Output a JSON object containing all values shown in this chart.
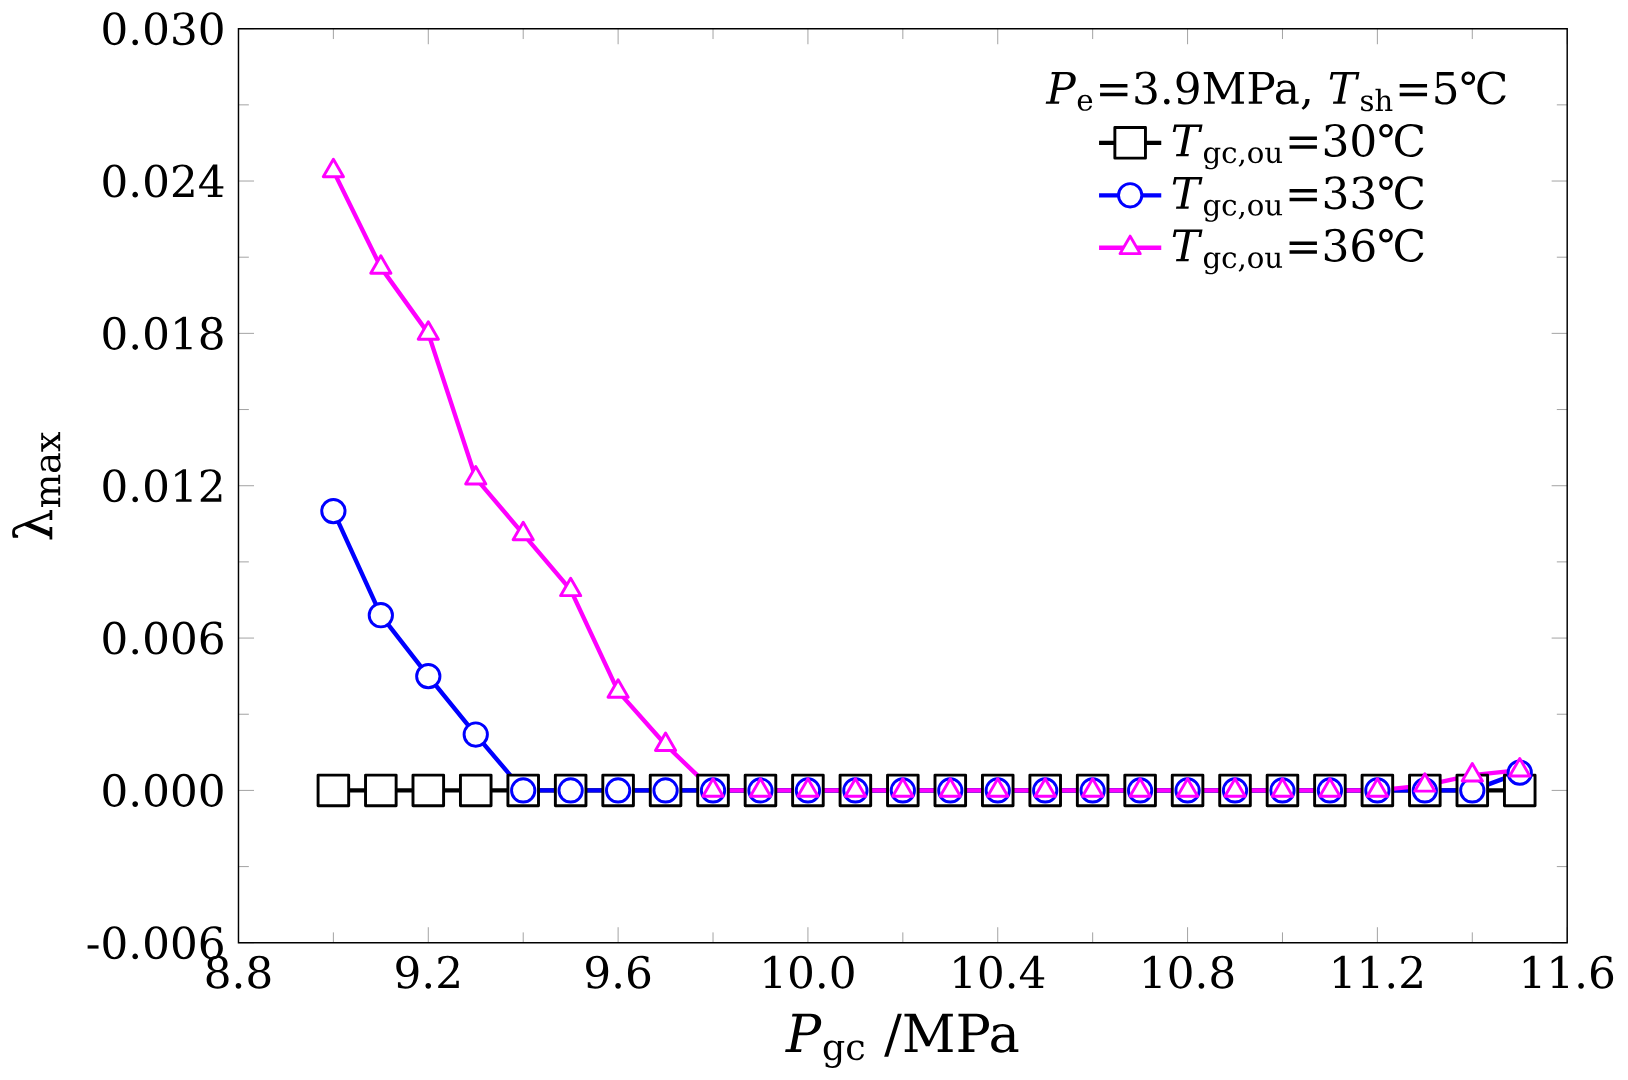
{
  "chart_data": {
    "type": "line",
    "xlabel": "*P*$_{gc}$ /MPa",
    "ylabel": "λ$_{max}$",
    "legend_title": "*P*$_{e}$=3.9MPa, *T*$_{sh}$=5℃",
    "legend": "top right",
    "grid": false,
    "x": [
      9.0,
      9.1,
      9.2,
      9.3,
      9.4,
      9.5,
      9.6,
      9.7,
      9.8,
      9.9,
      10.0,
      10.1,
      10.2,
      10.3,
      10.4,
      10.5,
      10.6,
      10.7,
      10.8,
      10.9,
      11.0,
      11.1,
      11.2,
      11.3,
      11.4,
      11.5
    ],
    "xlim": [
      8.8,
      11.6
    ],
    "xticks": [
      8.8,
      9.2,
      9.6,
      {
        "value": 10.0,
        "label": "10.0"
      },
      10.4,
      10.8,
      11.2,
      11.6
    ],
    "ylim": [
      -0.006,
      0.03
    ],
    "yticks": [
      {
        "value": -0.006,
        "label": "-0.006"
      },
      {
        "value": 0,
        "label": "0.000"
      },
      {
        "value": 0.006,
        "label": "0.006"
      },
      {
        "value": 0.012,
        "label": "0.012"
      },
      {
        "value": 0.018,
        "label": "0.018"
      },
      {
        "value": 0.024,
        "label": "0.024"
      },
      {
        "value": 0.03,
        "label": "0.030"
      }
    ],
    "series": [
      {
        "name": "*T*$_{gc,ou}$=30℃",
        "color": "#000000",
        "marker": "square",
        "values": [
          0,
          0,
          0,
          0,
          0,
          0,
          0,
          0,
          0,
          0,
          0,
          0,
          0,
          0,
          0,
          0,
          0,
          0,
          0,
          0,
          0,
          0,
          0,
          0,
          0,
          0
        ]
      },
      {
        "name": "*T*$_{gc,ou}$=33℃",
        "color": "#0000ff",
        "marker": "circle",
        "values": [
          0.011,
          0.0069,
          0.0045,
          0.0022,
          0,
          0,
          0,
          0,
          0,
          0,
          0,
          0,
          0,
          0,
          0,
          0,
          0,
          0,
          0,
          0,
          0,
          0,
          0,
          0,
          0,
          0.0007
        ]
      },
      {
        "name": "*T*$_{gc,ou}$=36℃",
        "color": "#ff00ff",
        "marker": "triangle",
        "values": [
          0.0244,
          0.0206,
          0.018,
          0.0123,
          0.0101,
          0.0079,
          0.0039,
          0.0018,
          0,
          0,
          0,
          0,
          0,
          0,
          0,
          0,
          0,
          0,
          0,
          0,
          0,
          0,
          0,
          0.0002,
          0.0006,
          0.0008
        ]
      }
    ]
  }
}
